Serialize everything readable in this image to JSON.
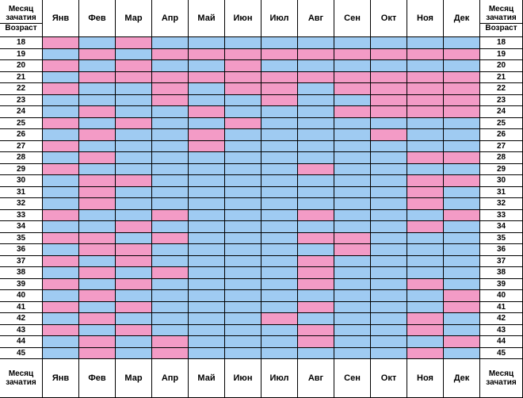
{
  "header_left": {
    "line1": "Месяц",
    "line2": "зачатия",
    "line3": "Возраст"
  },
  "header_right": {
    "line1": "Месяц",
    "line2": "зачатия",
    "line3": "Возраст"
  },
  "footer_left": {
    "line1": "Месяц",
    "line2": "зачатия"
  },
  "footer_right": {
    "line1": "Месяц",
    "line2": "зачатия"
  },
  "months": [
    "Янв",
    "Фев",
    "Мар",
    "Апр",
    "Май",
    "Июн",
    "Июл",
    "Авг",
    "Сен",
    "Окт",
    "Ноя",
    "Дек"
  ],
  "ages": [
    "18",
    "19",
    "20",
    "21",
    "22",
    "23",
    "24",
    "25",
    "26",
    "27",
    "28",
    "29",
    "30",
    "31",
    "32",
    "33",
    "34",
    "35",
    "36",
    "37",
    "38",
    "39",
    "40",
    "41",
    "42",
    "43",
    "44",
    "45"
  ],
  "colors": {
    "pink": "#f39bc6",
    "blue": "#9fcbf2",
    "border": "#000000"
  },
  "grid_key": {
    "G": "pink",
    "B": "blue"
  },
  "grid": [
    "GBGBBBBBBBBB",
    "BGBGGGGGGGGG",
    "GBGBBGBBBBBB",
    "BGGGGGGGGGGG",
    "GBBGBGGBGGGG",
    "BBBGBBGBBGGG",
    "BGBBGBBBGGGG",
    "GBGBBGBBBBBB",
    "BGBBGBBBBGBB",
    "GBBBGBBBBBBB",
    "BGBBBBBBBBGG",
    "GBBBBBBGBBBB",
    "BGGBBBBBBBGG",
    "BGBBBBBBBBGB",
    "BGBBBBBBBBGB",
    "GBBGBBBGBBBG",
    "BBGBBBBBBBGB",
    "GGBGBBBGGBBB",
    "BGGBBBBBGBBB",
    "GBGBBBBGBBBB",
    "BGBGBBBGBBBB",
    "GBGBBBBGBBGB",
    "BGBBBBBBBBBG",
    "GBGBBBBGBBBG",
    "BGBBBBGBBBGB",
    "GBGBBBBGBBGB",
    "BGBGBBBGBBBG",
    "BGBGBBBBBBGB"
  ]
}
